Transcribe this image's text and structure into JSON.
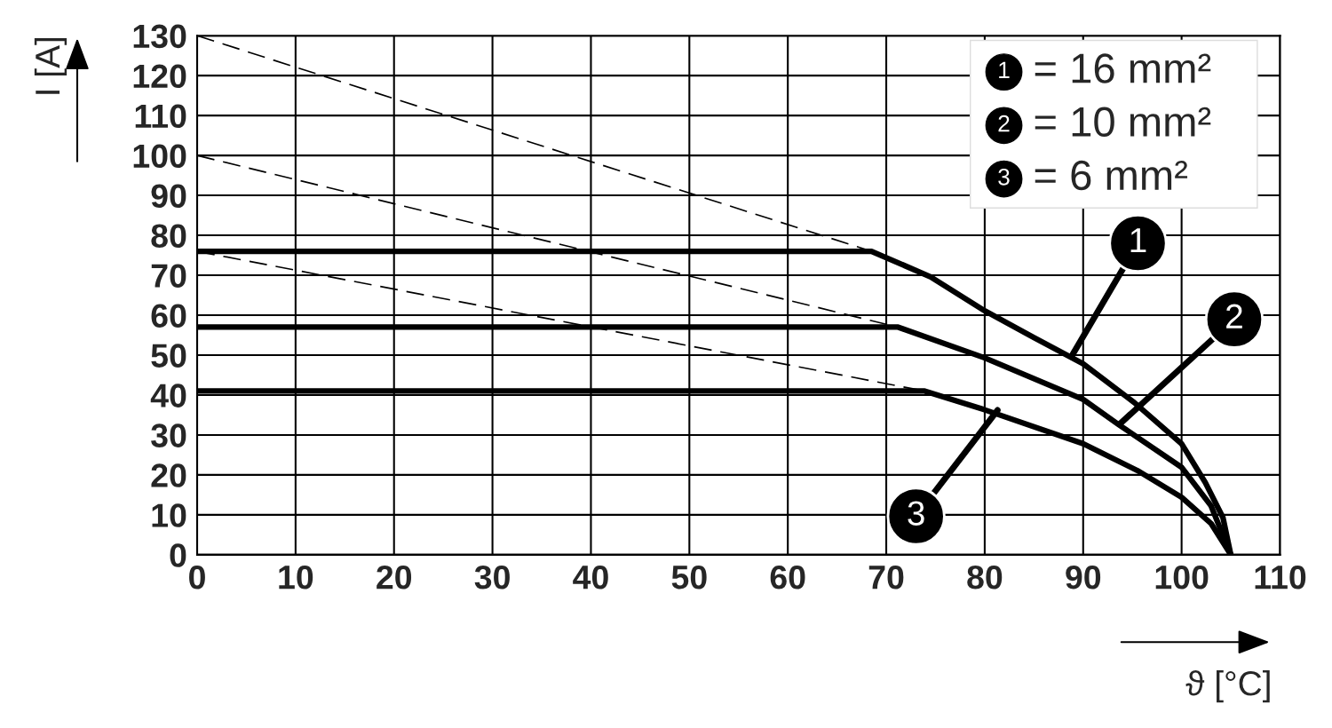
{
  "chart_data": {
    "type": "line",
    "xlabel": "ϑ [°C]",
    "ylabel": "I [A]",
    "xlim": [
      0,
      110
    ],
    "ylim": [
      0,
      130
    ],
    "xticks": [
      0,
      10,
      20,
      30,
      40,
      50,
      60,
      70,
      80,
      90,
      100,
      110
    ],
    "yticks": [
      0,
      10,
      20,
      30,
      40,
      50,
      60,
      70,
      80,
      90,
      100,
      110,
      120,
      130
    ],
    "grid": true,
    "marker": "none",
    "series": [
      {
        "color": "#000000",
        "line_style": "solid",
        "x": [
          0,
          68.5,
          74.5,
          80,
          85,
          90,
          95.2,
          100,
          102.4,
          104.2,
          105
        ],
        "values": [
          76,
          76,
          69.6,
          61.1,
          54.4,
          47.8,
          38.1,
          27.8,
          18.1,
          9.3,
          0
        ]
      },
      {
        "color": "#000000",
        "line_style": "solid",
        "x": [
          0,
          71.2,
          80,
          90,
          93.6,
          100,
          103,
          105
        ],
        "values": [
          57,
          57,
          49.3,
          38.9,
          32.6,
          21.9,
          12.2,
          0
        ]
      },
      {
        "color": "#000000",
        "line_style": "solid",
        "x": [
          0,
          73.9,
          80,
          90,
          95.5,
          100,
          103,
          105
        ],
        "values": [
          41,
          41,
          36.3,
          27.8,
          21.1,
          14.4,
          7.8,
          0
        ]
      },
      {
        "color": "#000000",
        "line_style": "dashed",
        "x": [
          0,
          68.5
        ],
        "values": [
          130,
          76
        ]
      },
      {
        "color": "#000000",
        "line_style": "dashed",
        "x": [
          0,
          71.2
        ],
        "values": [
          100,
          57
        ]
      },
      {
        "color": "#000000",
        "line_style": "dashed",
        "x": [
          0,
          73.9
        ],
        "values": [
          76,
          41
        ]
      }
    ],
    "annotations": [
      {
        "text": "1",
        "x": 88.8,
        "y": 49.6
      },
      {
        "text": "2",
        "x": 93.7,
        "y": 32.7
      },
      {
        "text": "3",
        "x": 81.3,
        "y": 36.2
      },
      "= 16 mm²",
      "= 10 mm²",
      "= 6 mm²"
    ]
  }
}
